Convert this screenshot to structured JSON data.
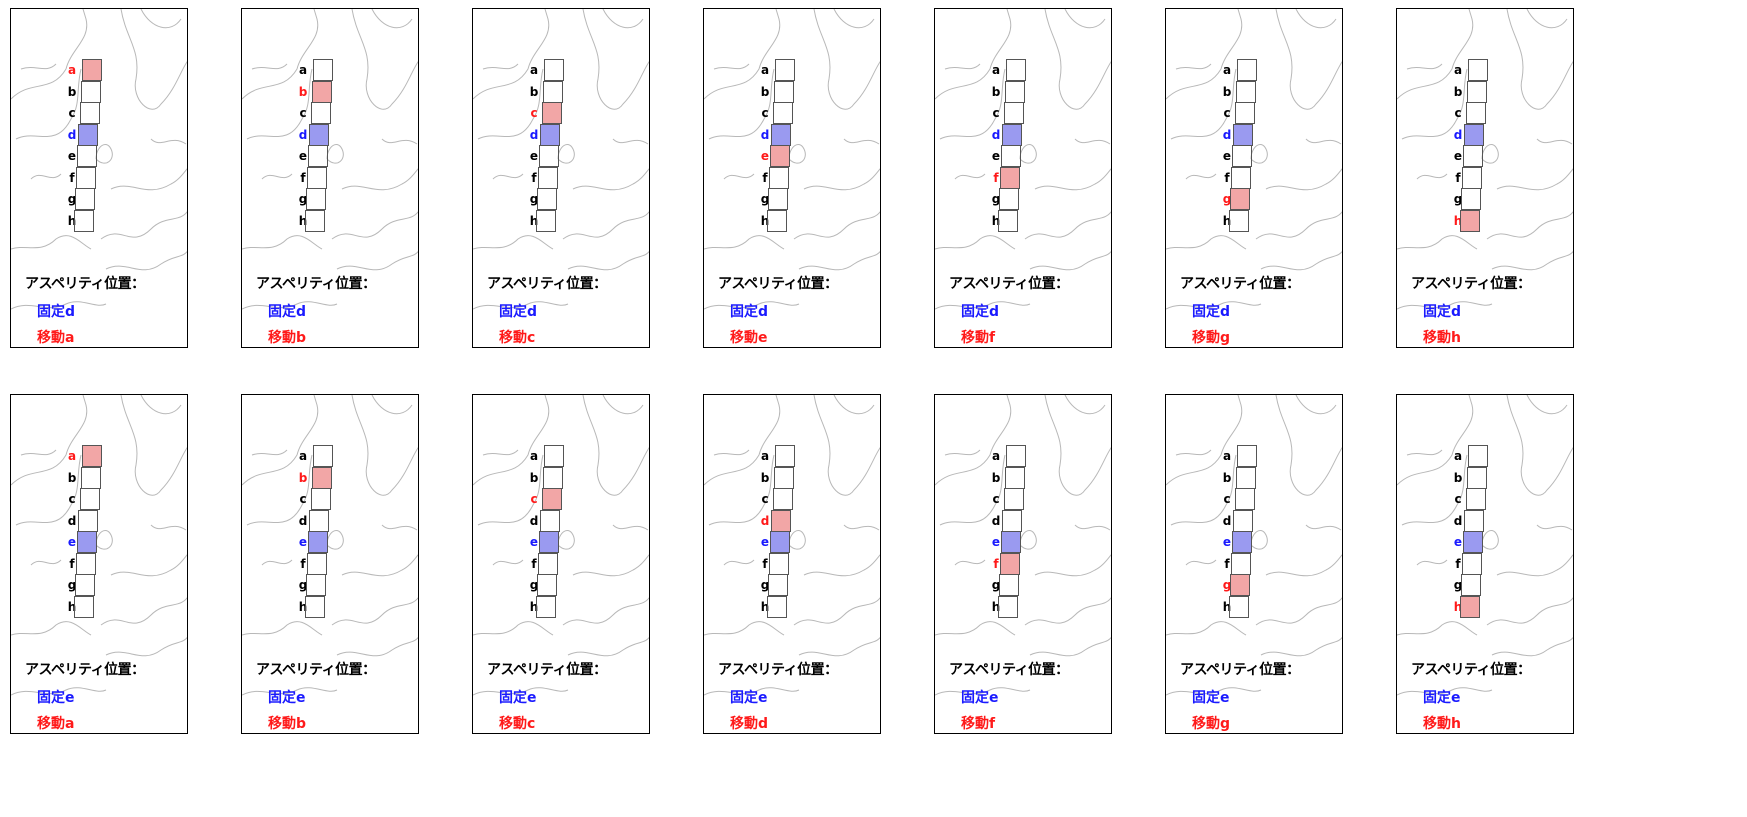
{
  "colors": {
    "fixed": "#1a1aff",
    "moving": "#ff1a1a",
    "fixed_fill": "#9a9af0",
    "moving_fill": "#f2a6a6",
    "default": "#000000"
  },
  "segments": [
    "a",
    "b",
    "c",
    "d",
    "e",
    "f",
    "g",
    "h"
  ],
  "heading": "アスペリティ位置：",
  "fixed_prefix": "固定",
  "moving_prefix": "移動",
  "panels": [
    {
      "fixed": "d",
      "moving": "a"
    },
    {
      "fixed": "d",
      "moving": "b"
    },
    {
      "fixed": "d",
      "moving": "c"
    },
    {
      "fixed": "d",
      "moving": "e"
    },
    {
      "fixed": "d",
      "moving": "f"
    },
    {
      "fixed": "d",
      "moving": "g"
    },
    {
      "fixed": "d",
      "moving": "h"
    },
    {
      "fixed": "e",
      "moving": "a"
    },
    {
      "fixed": "e",
      "moving": "b"
    },
    {
      "fixed": "e",
      "moving": "c"
    },
    {
      "fixed": "e",
      "moving": "d"
    },
    {
      "fixed": "e",
      "moving": "f"
    },
    {
      "fixed": "e",
      "moving": "g"
    },
    {
      "fixed": "e",
      "moving": "h"
    }
  ]
}
